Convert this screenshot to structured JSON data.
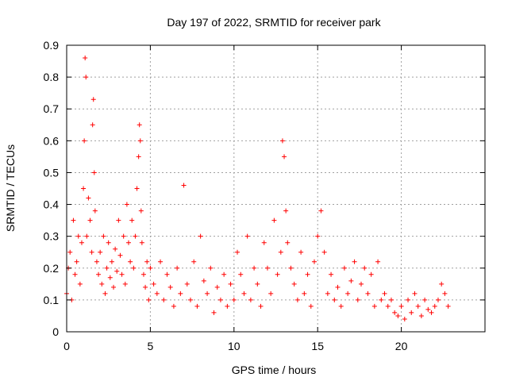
{
  "chart_data": {
    "type": "scatter",
    "title": "Day 197 of 2022, SRMTID for receiver park",
    "xlabel": "GPS time / hours",
    "ylabel": "SRMTID / TECUs",
    "xlim": [
      0,
      25
    ],
    "ylim": [
      0,
      0.9
    ],
    "xticks": [
      0,
      5,
      10,
      15,
      20
    ],
    "xtick_labels": [
      "0",
      "5",
      "10",
      "15",
      "20"
    ],
    "yticks": [
      0,
      0.1,
      0.2,
      0.3,
      0.4,
      0.5,
      0.6,
      0.7,
      0.8,
      0.9
    ],
    "ytick_labels": [
      "0",
      "0.1",
      "0.2",
      "0.3",
      "0.4",
      "0.5",
      "0.6",
      "0.7",
      "0.8",
      "0.9"
    ],
    "grid": true,
    "marker": "+",
    "series": [
      {
        "name": "SRMTID",
        "color": "#ff0000",
        "x": [
          0.0,
          0.1,
          0.2,
          0.3,
          0.4,
          0.5,
          0.6,
          0.7,
          0.8,
          0.9,
          1.0,
          1.05,
          1.1,
          1.15,
          1.2,
          1.3,
          1.4,
          1.5,
          1.55,
          1.6,
          1.65,
          1.7,
          1.8,
          1.9,
          2.0,
          2.1,
          2.2,
          2.3,
          2.4,
          2.5,
          2.6,
          2.7,
          2.8,
          2.9,
          3.0,
          3.1,
          3.2,
          3.3,
          3.4,
          3.5,
          3.6,
          3.7,
          3.8,
          3.9,
          4.0,
          4.1,
          4.2,
          4.3,
          4.35,
          4.4,
          4.45,
          4.5,
          4.6,
          4.7,
          4.8,
          4.9,
          5.0,
          5.2,
          5.4,
          5.6,
          5.8,
          6.0,
          6.2,
          6.4,
          6.6,
          6.8,
          7.0,
          7.2,
          7.4,
          7.6,
          7.8,
          8.0,
          8.2,
          8.4,
          8.6,
          8.8,
          9.0,
          9.2,
          9.4,
          9.6,
          9.8,
          10.0,
          10.2,
          10.4,
          10.6,
          10.8,
          11.0,
          11.2,
          11.4,
          11.6,
          11.8,
          12.0,
          12.2,
          12.4,
          12.6,
          12.8,
          12.9,
          13.0,
          13.1,
          13.2,
          13.4,
          13.6,
          13.8,
          14.0,
          14.2,
          14.4,
          14.6,
          14.8,
          15.0,
          15.2,
          15.4,
          15.6,
          15.8,
          16.0,
          16.2,
          16.4,
          16.6,
          16.8,
          17.0,
          17.2,
          17.4,
          17.6,
          17.8,
          18.0,
          18.2,
          18.4,
          18.6,
          18.8,
          19.0,
          19.2,
          19.4,
          19.6,
          19.8,
          20.0,
          20.2,
          20.4,
          20.6,
          20.8,
          21.0,
          21.2,
          21.4,
          21.6,
          21.8,
          22.0,
          22.2,
          22.4,
          22.6,
          22.8
        ],
        "y": [
          0.12,
          0.2,
          0.25,
          0.1,
          0.35,
          0.18,
          0.22,
          0.3,
          0.15,
          0.28,
          0.45,
          0.6,
          0.86,
          0.8,
          0.3,
          0.42,
          0.35,
          0.25,
          0.65,
          0.73,
          0.5,
          0.38,
          0.22,
          0.18,
          0.25,
          0.15,
          0.3,
          0.12,
          0.2,
          0.28,
          0.17,
          0.22,
          0.14,
          0.26,
          0.19,
          0.35,
          0.24,
          0.18,
          0.3,
          0.15,
          0.4,
          0.28,
          0.22,
          0.35,
          0.2,
          0.3,
          0.45,
          0.55,
          0.65,
          0.6,
          0.38,
          0.28,
          0.18,
          0.14,
          0.22,
          0.1,
          0.2,
          0.15,
          0.12,
          0.22,
          0.1,
          0.18,
          0.14,
          0.08,
          0.2,
          0.12,
          0.46,
          0.15,
          0.1,
          0.22,
          0.08,
          0.3,
          0.16,
          0.12,
          0.2,
          0.06,
          0.14,
          0.1,
          0.18,
          0.08,
          0.15,
          0.1,
          0.25,
          0.18,
          0.12,
          0.3,
          0.1,
          0.2,
          0.15,
          0.08,
          0.28,
          0.2,
          0.12,
          0.35,
          0.18,
          0.25,
          0.6,
          0.55,
          0.38,
          0.28,
          0.2,
          0.15,
          0.1,
          0.25,
          0.12,
          0.18,
          0.08,
          0.22,
          0.3,
          0.38,
          0.25,
          0.12,
          0.18,
          0.1,
          0.14,
          0.08,
          0.2,
          0.12,
          0.16,
          0.22,
          0.1,
          0.15,
          0.2,
          0.12,
          0.18,
          0.08,
          0.22,
          0.1,
          0.12,
          0.08,
          0.1,
          0.06,
          0.05,
          0.08,
          0.04,
          0.1,
          0.06,
          0.12,
          0.08,
          0.05,
          0.1,
          0.07,
          0.06,
          0.08,
          0.1,
          0.15,
          0.12,
          0.08
        ]
      }
    ]
  }
}
